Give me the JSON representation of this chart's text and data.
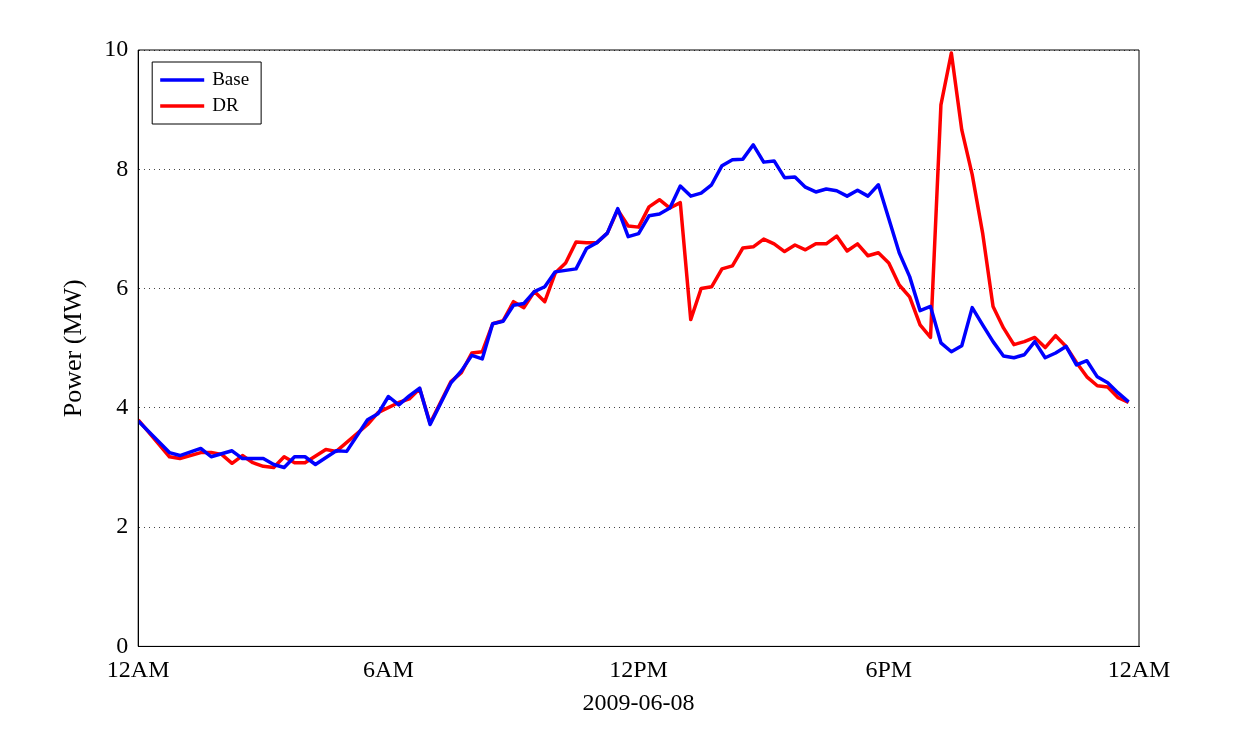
{
  "chart_data": {
    "type": "line",
    "xlabel": "2009-06-08",
    "ylabel": "Power (MW)",
    "xlim": [
      "2009-06-08T00:00",
      "2009-06-09T00:00"
    ],
    "xticks": [
      {
        "value": "2009-06-08T00:00",
        "label": "12AM"
      },
      {
        "value": "2009-06-08T06:00",
        "label": "6AM"
      },
      {
        "value": "2009-06-08T12:00",
        "label": "12PM"
      },
      {
        "value": "2009-06-08T18:00",
        "label": "6PM"
      },
      {
        "value": "2009-06-09T00:00",
        "label": "12AM"
      }
    ],
    "ylim": [
      0,
      10
    ],
    "yticks": [
      0,
      2,
      4,
      6,
      8,
      10
    ],
    "grid": "y",
    "legend": "top left",
    "line_style": "solid",
    "series": [
      {
        "name": "Base",
        "color": "#0000ff",
        "x": [
          "2009-06-08T00:00",
          "2009-06-08T00:45",
          "2009-06-08T01:00",
          "2009-06-08T01:30",
          "2009-06-08T01:45",
          "2009-06-08T02:15",
          "2009-06-08T02:30",
          "2009-06-08T03:00",
          "2009-06-08T03:15",
          "2009-06-08T03:30",
          "2009-06-08T03:45",
          "2009-06-08T04:00",
          "2009-06-08T04:15",
          "2009-06-08T04:45",
          "2009-06-08T05:00",
          "2009-06-08T05:30",
          "2009-06-08T05:45",
          "2009-06-08T06:00",
          "2009-06-08T06:15",
          "2009-06-08T06:30",
          "2009-06-08T06:45",
          "2009-06-08T07:00",
          "2009-06-08T07:30",
          "2009-06-08T07:45",
          "2009-06-08T08:00",
          "2009-06-08T08:15",
          "2009-06-08T08:30",
          "2009-06-08T08:45",
          "2009-06-08T09:00",
          "2009-06-08T09:15",
          "2009-06-08T09:30",
          "2009-06-08T09:45",
          "2009-06-08T10:00",
          "2009-06-08T10:30",
          "2009-06-08T10:45",
          "2009-06-08T11:00",
          "2009-06-08T11:15",
          "2009-06-08T11:30",
          "2009-06-08T11:45",
          "2009-06-08T12:00",
          "2009-06-08T12:15",
          "2009-06-08T12:30",
          "2009-06-08T12:45",
          "2009-06-08T13:00",
          "2009-06-08T13:15",
          "2009-06-08T13:30",
          "2009-06-08T13:45",
          "2009-06-08T14:00",
          "2009-06-08T14:15",
          "2009-06-08T14:30",
          "2009-06-08T14:45",
          "2009-06-08T15:00",
          "2009-06-08T15:15",
          "2009-06-08T15:30",
          "2009-06-08T15:45",
          "2009-06-08T16:00",
          "2009-06-08T16:15",
          "2009-06-08T16:30",
          "2009-06-08T16:45",
          "2009-06-08T17:00",
          "2009-06-08T17:15",
          "2009-06-08T17:30",
          "2009-06-08T17:45",
          "2009-06-08T18:15",
          "2009-06-08T18:30",
          "2009-06-08T18:45",
          "2009-06-08T19:00",
          "2009-06-08T19:15",
          "2009-06-08T19:30",
          "2009-06-08T19:45",
          "2009-06-08T20:00",
          "2009-06-08T20:15",
          "2009-06-08T20:30",
          "2009-06-08T20:45",
          "2009-06-08T21:00",
          "2009-06-08T21:15",
          "2009-06-08T21:30",
          "2009-06-08T21:45",
          "2009-06-08T22:00",
          "2009-06-08T22:15",
          "2009-06-08T22:30",
          "2009-06-08T22:45",
          "2009-06-08T23:00",
          "2009-06-08T23:15",
          "2009-06-08T23:30",
          "2009-06-08T23:45"
        ],
        "values": [
          3.78,
          3.25,
          3.2,
          3.32,
          3.18,
          3.28,
          3.15,
          3.15,
          3.05,
          3.0,
          3.18,
          3.18,
          3.05,
          3.28,
          3.27,
          3.8,
          3.9,
          4.19,
          4.05,
          4.2,
          4.33,
          3.72,
          4.42,
          4.62,
          4.88,
          4.82,
          5.41,
          5.45,
          5.72,
          5.75,
          5.95,
          6.03,
          6.28,
          6.33,
          6.67,
          6.77,
          6.93,
          7.34,
          6.87,
          6.92,
          7.22,
          7.25,
          7.35,
          7.72,
          7.55,
          7.6,
          7.74,
          8.06,
          8.16,
          8.17,
          8.41,
          8.12,
          8.14,
          7.86,
          7.87,
          7.7,
          7.62,
          7.67,
          7.64,
          7.55,
          7.65,
          7.55,
          7.74,
          6.6,
          6.2,
          5.63,
          5.7,
          5.09,
          4.94,
          5.04,
          5.68,
          5.39,
          5.11,
          4.87,
          4.84,
          4.89,
          5.11,
          4.84,
          4.92,
          5.03,
          4.72,
          4.79,
          4.52,
          4.42,
          4.25,
          4.1
        ]
      },
      {
        "name": "DR",
        "color": "#ff0000",
        "x": [
          "2009-06-08T00:00",
          "2009-06-08T00:45",
          "2009-06-08T01:00",
          "2009-06-08T01:30",
          "2009-06-08T01:45",
          "2009-06-08T02:00",
          "2009-06-08T02:15",
          "2009-06-08T02:30",
          "2009-06-08T02:45",
          "2009-06-08T03:00",
          "2009-06-08T03:15",
          "2009-06-08T03:30",
          "2009-06-08T03:45",
          "2009-06-08T04:00",
          "2009-06-08T04:30",
          "2009-06-08T04:45",
          "2009-06-08T05:30",
          "2009-06-08T05:45",
          "2009-06-08T06:15",
          "2009-06-08T06:30",
          "2009-06-08T06:45",
          "2009-06-08T07:00",
          "2009-06-08T07:30",
          "2009-06-08T07:45",
          "2009-06-08T08:00",
          "2009-06-08T08:15",
          "2009-06-08T08:30",
          "2009-06-08T08:45",
          "2009-06-08T09:00",
          "2009-06-08T09:15",
          "2009-06-08T09:30",
          "2009-06-08T09:45",
          "2009-06-08T10:00",
          "2009-06-08T10:15",
          "2009-06-08T10:30",
          "2009-06-08T10:45",
          "2009-06-08T11:00",
          "2009-06-08T11:15",
          "2009-06-08T11:30",
          "2009-06-08T11:45",
          "2009-06-08T12:00",
          "2009-06-08T12:15",
          "2009-06-08T12:30",
          "2009-06-08T12:45",
          "2009-06-08T13:00",
          "2009-06-08T13:15",
          "2009-06-08T13:30",
          "2009-06-08T13:45",
          "2009-06-08T14:00",
          "2009-06-08T14:15",
          "2009-06-08T14:30",
          "2009-06-08T14:45",
          "2009-06-08T15:00",
          "2009-06-08T15:15",
          "2009-06-08T15:30",
          "2009-06-08T15:45",
          "2009-06-08T16:00",
          "2009-06-08T16:15",
          "2009-06-08T16:30",
          "2009-06-08T16:45",
          "2009-06-08T17:00",
          "2009-06-08T17:15",
          "2009-06-08T17:30",
          "2009-06-08T17:45",
          "2009-06-08T18:00",
          "2009-06-08T18:15",
          "2009-06-08T18:30",
          "2009-06-08T18:45",
          "2009-06-08T19:00",
          "2009-06-08T19:15",
          "2009-06-08T19:30",
          "2009-06-08T19:45",
          "2009-06-08T20:00",
          "2009-06-08T20:15",
          "2009-06-08T20:30",
          "2009-06-08T20:45",
          "2009-06-08T21:00",
          "2009-06-08T21:15",
          "2009-06-08T21:30",
          "2009-06-08T21:45",
          "2009-06-08T22:00",
          "2009-06-08T22:15",
          "2009-06-08T22:30",
          "2009-06-08T22:45",
          "2009-06-08T23:00",
          "2009-06-08T23:15",
          "2009-06-08T23:30",
          "2009-06-08T23:45"
        ],
        "values": [
          3.8,
          3.18,
          3.15,
          3.25,
          3.25,
          3.22,
          3.07,
          3.2,
          3.08,
          3.02,
          3.0,
          3.18,
          3.08,
          3.08,
          3.3,
          3.27,
          3.72,
          3.92,
          4.09,
          4.15,
          4.32,
          3.74,
          4.44,
          4.59,
          4.92,
          4.94,
          5.41,
          5.46,
          5.78,
          5.68,
          5.95,
          5.78,
          6.26,
          6.43,
          6.78,
          6.77,
          6.77,
          6.93,
          7.32,
          7.05,
          7.03,
          7.37,
          7.49,
          7.35,
          7.44,
          5.48,
          6.0,
          6.03,
          6.33,
          6.38,
          6.68,
          6.7,
          6.83,
          6.75,
          6.62,
          6.73,
          6.65,
          6.75,
          6.75,
          6.88,
          6.63,
          6.75,
          6.55,
          6.6,
          6.43,
          6.06,
          5.86,
          5.39,
          5.18,
          9.08,
          9.95,
          8.66,
          7.91,
          6.93,
          5.7,
          5.34,
          5.06,
          5.11,
          5.18,
          5.01,
          5.21,
          5.03,
          4.76,
          4.52,
          4.37,
          4.35,
          4.17,
          4.09
        ]
      }
    ]
  }
}
